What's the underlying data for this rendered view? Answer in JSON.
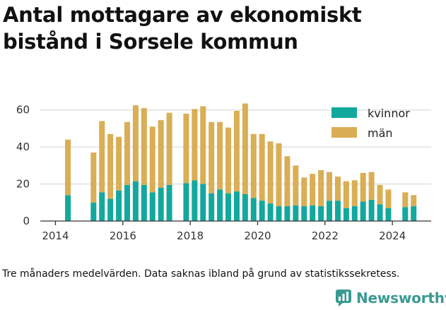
{
  "title": "Antal mottagare av ekonomiskt bistånd i Sorsele kommun",
  "note": "Tre månaders medelvärden. Data saknas ibland på grund av statistikssekretess.",
  "logo_text": "Newsworthy",
  "colors": {
    "kvinnor": "#13a89e",
    "man": "#d9ae55",
    "grid": "#dcdcdc",
    "axis": "#333333",
    "logo": "#3a9a92"
  },
  "chart_data": {
    "type": "bar",
    "stacked": true,
    "x_ticks": [
      2014,
      2016,
      2018,
      2020,
      2022,
      2024
    ],
    "y_ticks": [
      0,
      20,
      40,
      60
    ],
    "ylim": [
      0,
      66
    ],
    "xlim": [
      2013.55,
      2025.15
    ],
    "grid": true,
    "legend_position": "top-right",
    "x": [
      2014.37,
      2015.13,
      2015.38,
      2015.63,
      2015.88,
      2016.13,
      2016.38,
      2016.63,
      2016.88,
      2017.13,
      2017.38,
      2017.88,
      2018.13,
      2018.38,
      2018.63,
      2018.88,
      2019.13,
      2019.38,
      2019.63,
      2019.88,
      2020.13,
      2020.38,
      2020.63,
      2020.88,
      2021.13,
      2021.38,
      2021.63,
      2021.88,
      2022.13,
      2022.38,
      2022.63,
      2022.88,
      2023.13,
      2023.38,
      2023.63,
      2023.88,
      2024.38,
      2024.63
    ],
    "series": [
      {
        "name": "kvinnor",
        "values": [
          14,
          10,
          15.5,
          12,
          16.5,
          19.5,
          21.5,
          19.5,
          15.5,
          18,
          19.5,
          20.5,
          22,
          20,
          15,
          17,
          15,
          16,
          14.5,
          12.5,
          11,
          9.5,
          8,
          8,
          8.5,
          8,
          8.5,
          8,
          11,
          11,
          7,
          8,
          10.5,
          11.5,
          9,
          7,
          7.5,
          8
        ]
      },
      {
        "name": "män",
        "values": [
          30,
          27,
          38.5,
          35,
          29,
          34,
          41,
          41.5,
          35.5,
          36.5,
          39,
          37.5,
          38.5,
          42,
          38.5,
          36.5,
          35.5,
          43.5,
          49,
          34.5,
          36,
          33.5,
          34,
          27,
          21.5,
          15.5,
          17,
          19.5,
          15.5,
          13,
          14.5,
          14,
          15.5,
          15,
          10.5,
          10,
          8,
          6
        ]
      }
    ]
  }
}
